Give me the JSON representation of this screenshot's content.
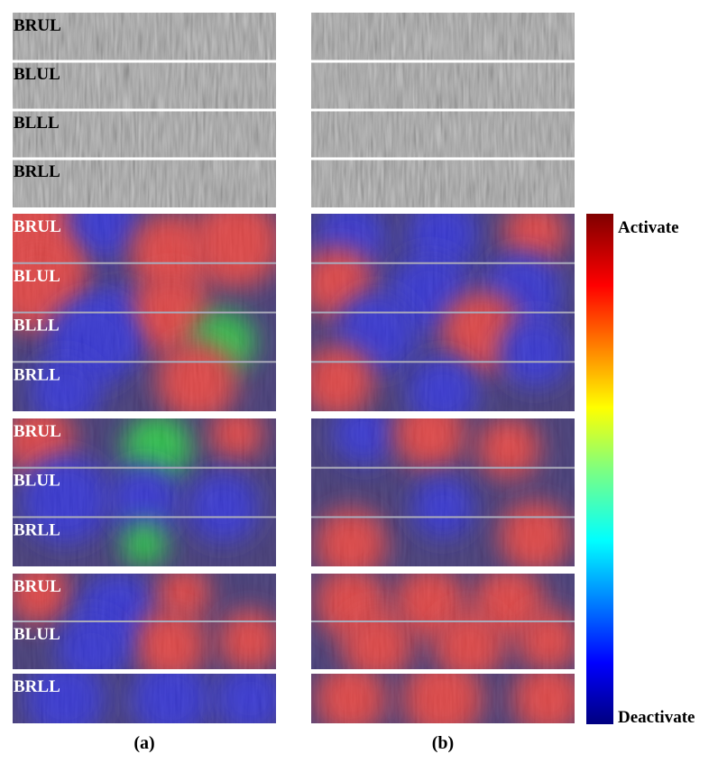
{
  "figure": {
    "panels": [
      {
        "labels": [
          "BRUL",
          "BLUL",
          "BLLL",
          "BRLL"
        ]
      },
      {
        "labels": [
          "BRUL",
          "BLUL",
          "BLLL",
          "BRLL"
        ]
      },
      {
        "labels": [
          "BRUL",
          "BLUL",
          "BRLL"
        ]
      },
      {
        "labels": [
          "BRUL",
          "BLUL"
        ]
      },
      {
        "labels": [
          "BRLL"
        ]
      }
    ],
    "colorbar": {
      "top_label": "Activate",
      "bottom_label": "Deactivate"
    },
    "captions": [
      "(a)",
      "(b)"
    ]
  }
}
